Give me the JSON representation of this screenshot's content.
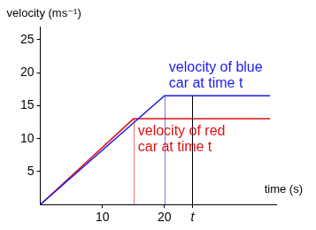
{
  "chart_data": {
    "type": "line",
    "x_label": "time (s)",
    "y_label": "velocity (ms⁻¹)",
    "series": [
      {
        "color": "#1a1aee",
        "x": [
          0,
          20,
          37
        ],
        "values": [
          0,
          16.5,
          16.5
        ]
      },
      {
        "color": "#dd1111",
        "x": [
          0,
          15,
          37
        ],
        "values": [
          0,
          13,
          13
        ]
      }
    ],
    "xlim": [
      0,
      38
    ],
    "ylim": [
      0,
      27
    ],
    "xticks": [
      10,
      20,
      {
        "value": 24.5,
        "label": "t"
      }
    ],
    "yticks": [
      5,
      10,
      15,
      20,
      25
    ],
    "grid": false,
    "annotations": [
      {
        "text": [
          "velocity of blue",
          "car at time t"
        ],
        "color": "#1a1aee"
      },
      {
        "text": [
          "velocity of red",
          "car at time t"
        ],
        "color": "#dd1111"
      }
    ]
  }
}
